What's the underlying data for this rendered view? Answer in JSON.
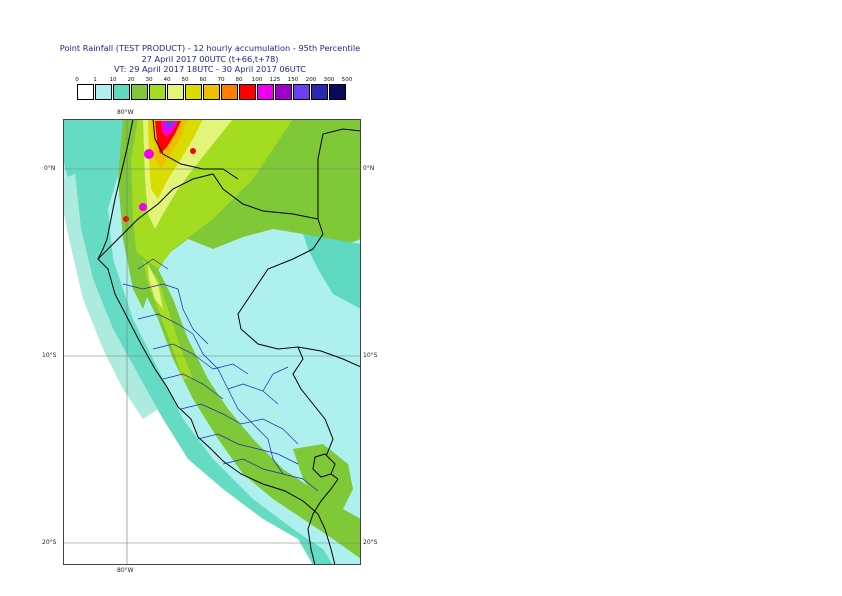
{
  "title": {
    "line1": "Point Rainfall (TEST PRODUCT) - 12 hourly accumulation - 95th Percentile",
    "line2": "27 April 2017 00UTC (t+66,t+78)",
    "line3": "VT: 29 April 2017 18UTC - 30 April 2017 06UTC"
  },
  "legend": {
    "thresholds": [
      "0",
      "1",
      "10",
      "20",
      "30",
      "40",
      "50",
      "60",
      "70",
      "80",
      "100",
      "125",
      "150",
      "200",
      "300",
      "500"
    ],
    "colors": [
      "#ffffff",
      "#aef0ee",
      "#5ed8bf",
      "#7fc837",
      "#a3dc21",
      "#e3f47a",
      "#dadc00",
      "#f0c000",
      "#ff7e00",
      "#ff0000",
      "#ee00ee",
      "#a000c8",
      "#6a40f0",
      "#2828b0",
      "#0a0a5a"
    ]
  },
  "axes": {
    "lon_top": "80°W",
    "lon_bottom": "80°W",
    "lat_left": [
      "0°N",
      "10°S",
      "20°S"
    ],
    "lat_right": [
      "0°N",
      "10°S",
      "20°S"
    ]
  }
}
